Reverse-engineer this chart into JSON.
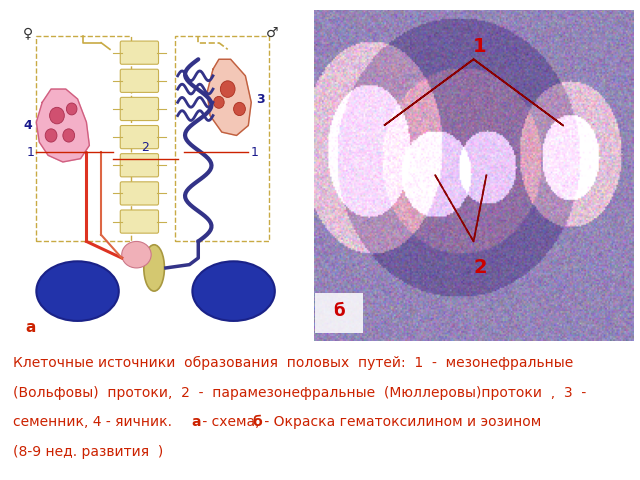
{
  "figure_width": 6.4,
  "figure_height": 4.8,
  "dpi": 100,
  "bg": "#ffffff",
  "caption_color": "#cc2200",
  "caption_fontsize": 10.0,
  "line1": "Клеточные источники  образования  половых  путей:  1  -  мезонефральные",
  "line2": "(Вольфовы)  протоки,  2  -  парамезонефральные  (Мюллеровы)протоки  ,  3  -",
  "line3a": "семенник, 4 - яичник.       ",
  "line3b": "а",
  "line3c": " - схема, ",
  "line3d": "б",
  "line3e": " - Окраска гематоксилином и эозином",
  "line4": "(8-9 нед. развития  )"
}
